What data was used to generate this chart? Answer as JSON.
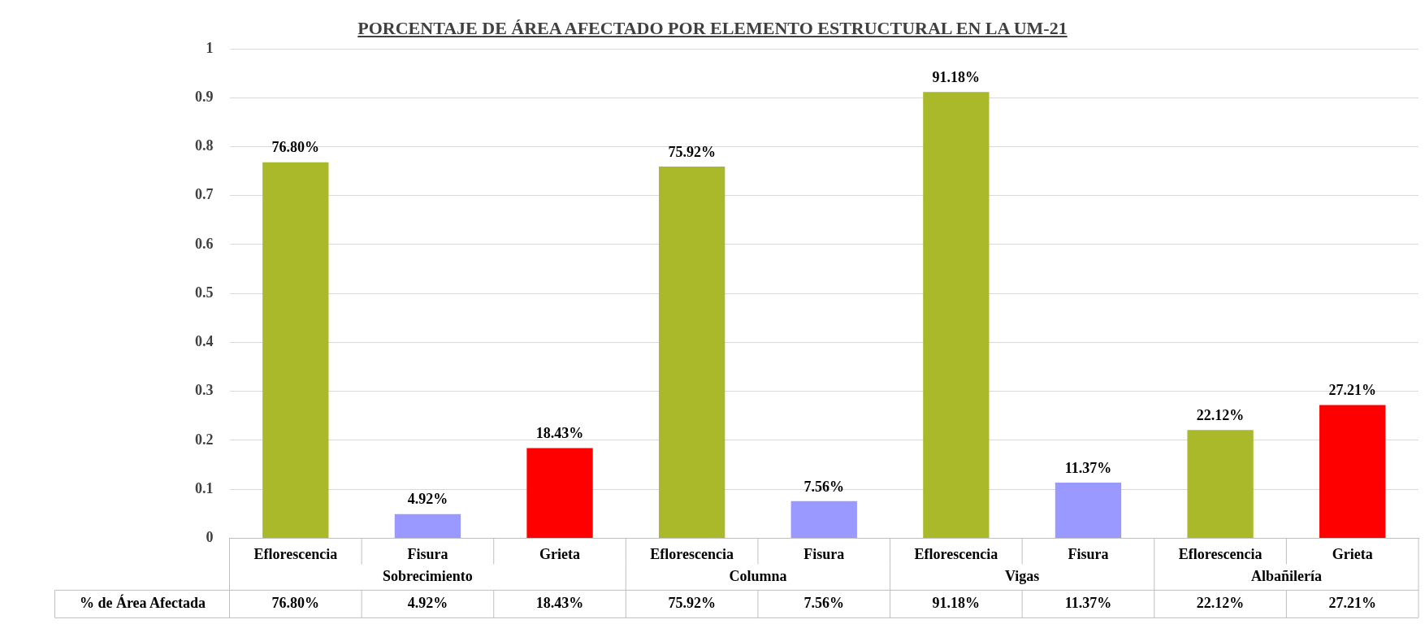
{
  "chart_data": {
    "type": "bar",
    "title": "PORCENTAJE  DE ÁREA AFECTADO  POR ELEMENTO  ESTRUCTURAL  EN LA UM-21",
    "categories": [
      "Eflorescencia",
      "Fisura",
      "Grieta",
      "Eflorescencia",
      "Fisura",
      "Eflorescencia",
      "Fisura",
      "Eflorescencia",
      "Grieta"
    ],
    "values": [
      0.768,
      0.0492,
      0.1843,
      0.7592,
      0.0756,
      0.9118,
      0.1137,
      0.2212,
      0.2721
    ],
    "value_labels": [
      "76.80%",
      "4.92%",
      "18.43%",
      "75.92%",
      "7.56%",
      "91.18%",
      "11.37%",
      "22.12%",
      "27.21%"
    ],
    "colors": [
      "#a9b92a",
      "#9999ff",
      "#ff0000",
      "#a9b92a",
      "#9999ff",
      "#a9b92a",
      "#9999ff",
      "#a9b92a",
      "#ff0000"
    ],
    "ylim": [
      0,
      1
    ],
    "yticks": [
      0,
      0.1,
      0.2,
      0.3,
      0.4,
      0.5,
      0.6,
      0.7,
      0.8,
      0.9,
      1
    ],
    "grid": "y",
    "legend": false,
    "annotations": [
      "Sobrecimiento",
      "Columna",
      "Vigas",
      "Albañilería",
      "% de Área Afectada"
    ]
  }
}
